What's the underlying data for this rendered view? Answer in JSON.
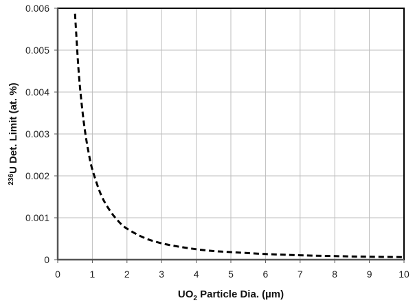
{
  "chart_data": {
    "type": "line",
    "title": "",
    "xlabel": "UO2 Particle Dia. (µm)",
    "xlabel_parts": {
      "main": "UO",
      "sub": "2",
      "rest": " Particle Dia. (µm)"
    },
    "ylabel": "236U Det. Limit (at. %)",
    "ylabel_parts": {
      "sup": "236",
      "rest": "U Det. Limit (at. %)"
    },
    "xlim": [
      0,
      10
    ],
    "ylim": [
      0,
      0.006
    ],
    "x_ticks": [
      "0",
      "1",
      "2",
      "3",
      "4",
      "5",
      "6",
      "7",
      "8",
      "9",
      "10"
    ],
    "y_ticks": [
      "0",
      "0.001",
      "0.002",
      "0.003",
      "0.004",
      "0.005",
      "0.006"
    ],
    "grid": true,
    "legend": null,
    "series": [
      {
        "name": "236U detection limit",
        "style": "dashed",
        "color": "#000000",
        "x": [
          0.5,
          0.6,
          0.7,
          0.8,
          0.9,
          1.0,
          1.25,
          1.5,
          1.75,
          2.0,
          2.5,
          3.0,
          3.5,
          4.0,
          4.5,
          5.0,
          6.0,
          7.0,
          8.0,
          9.0,
          10.0
        ],
        "values": [
          0.00587,
          0.00455,
          0.00365,
          0.003,
          0.00252,
          0.00215,
          0.00155,
          0.00118,
          0.00092,
          0.00074,
          0.00052,
          0.00039,
          0.00031,
          0.00025,
          0.000205,
          0.00018,
          0.000135,
          0.000105,
          8.5e-05,
          7e-05,
          6e-05
        ]
      }
    ]
  },
  "colors": {
    "grid": "#bdbdbd",
    "axis": "#555555",
    "frame": "#000000",
    "curve": "#000000"
  }
}
